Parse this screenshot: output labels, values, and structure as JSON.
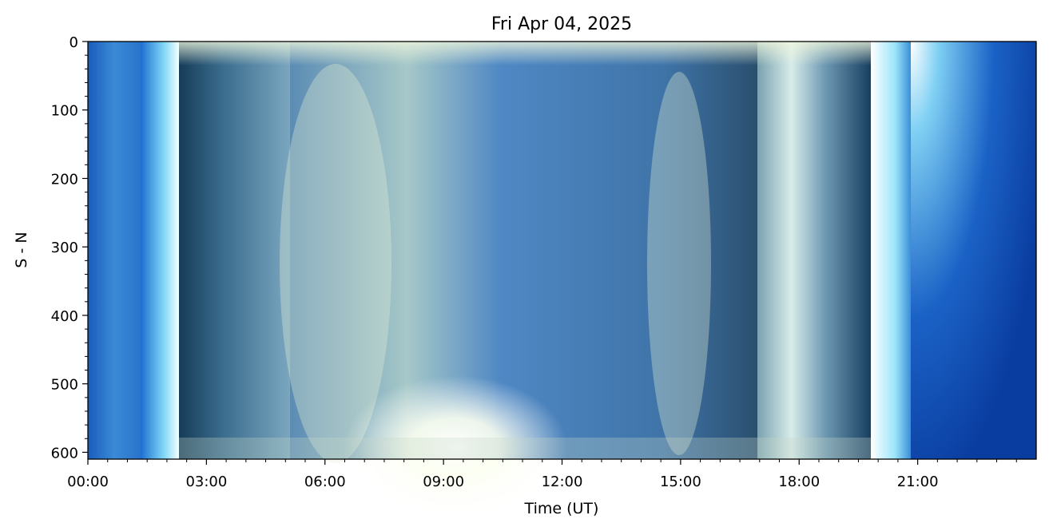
{
  "chart_data": {
    "type": "keogram",
    "title": "Fri Apr 04, 2025",
    "x_label": "Time (UT)",
    "y_label": "S - N",
    "xlim": [
      0,
      24
    ],
    "xticks": [
      {
        "value": 0,
        "label": "00:00"
      },
      {
        "value": 3,
        "label": "03:00"
      },
      {
        "value": 6,
        "label": "06:00"
      },
      {
        "value": 9,
        "label": "09:00"
      },
      {
        "value": 12,
        "label": "12:00"
      },
      {
        "value": 15,
        "label": "15:00"
      },
      {
        "value": 18,
        "label": "18:00"
      },
      {
        "value": 21,
        "label": "21:00"
      }
    ],
    "xminorticks": [
      0.5,
      1,
      1.5,
      2,
      2.5,
      3.5,
      4,
      4.5,
      5,
      5.5,
      6.5,
      7,
      7.5,
      8,
      8.5,
      9.5,
      10,
      10.5,
      11,
      11.5,
      12.5,
      13,
      13.5,
      14,
      14.5,
      15.5,
      16,
      16.5,
      17,
      17.5,
      18.5,
      19,
      19.5,
      20,
      20.5,
      21.5,
      22,
      22.5,
      23,
      23.5
    ],
    "ylim": [
      0,
      610
    ],
    "y_inverted": true,
    "yticks": [
      0,
      100,
      200,
      300,
      400,
      500,
      600
    ],
    "yminorticks": [
      20,
      40,
      60,
      80,
      120,
      140,
      160,
      180,
      220,
      240,
      260,
      280,
      320,
      340,
      360,
      380,
      420,
      440,
      460,
      480,
      520,
      540,
      560,
      580
    ]
  }
}
